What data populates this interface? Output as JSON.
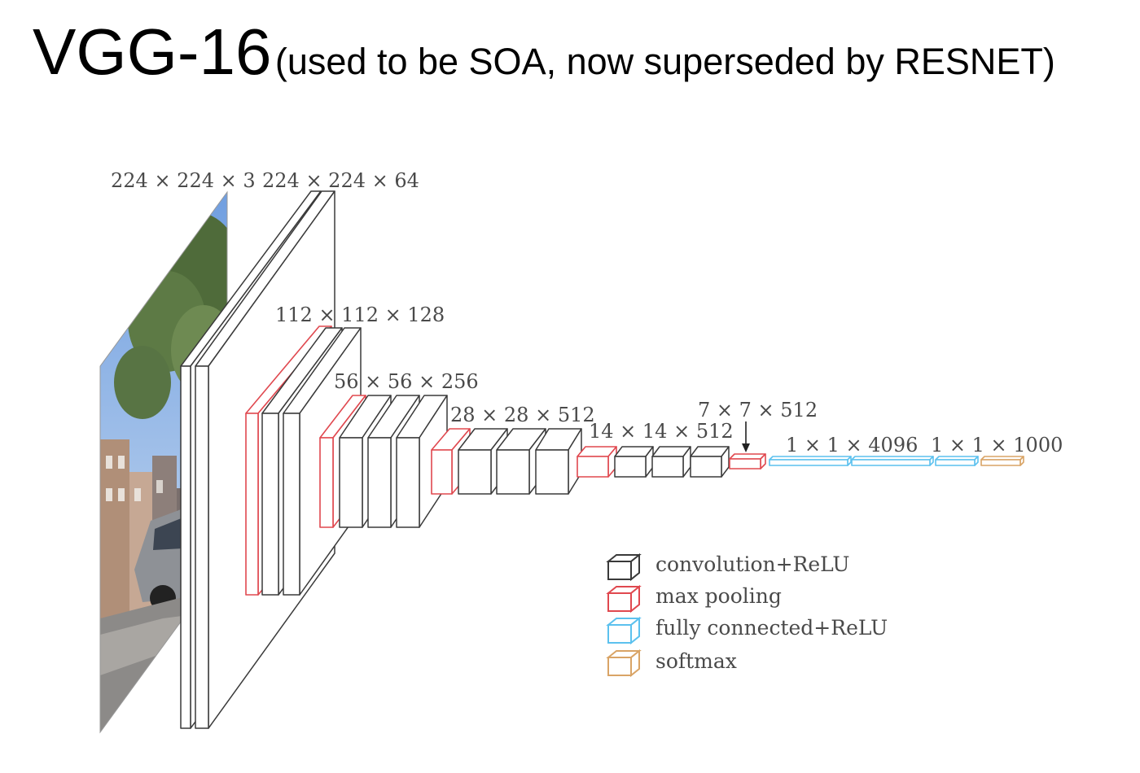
{
  "slide": {
    "title": "VGG-16",
    "subtitle": "(used to be SOA, now superseded by RESNET)"
  },
  "colors": {
    "conv": "#3a3a3a",
    "pool": "#e0484f",
    "fc": "#5cc1ee",
    "softmax": "#d9a466"
  },
  "dimensions": [
    "224 × 224 × 3",
    "224 × 224 × 64",
    "112 × 112 × 128",
    "56 × 56 × 256",
    "28 × 28 × 512",
    "14 × 14 × 512",
    "7 × 7 × 512",
    "1 × 1 × 4096",
    "1 × 1 × 1000"
  ],
  "legend": [
    {
      "label": "convolution+ReLU",
      "type": "conv"
    },
    {
      "label": "max  pooling",
      "type": "pool"
    },
    {
      "label": "fully  connected+ReLU",
      "type": "fc"
    },
    {
      "label": "softmax",
      "type": "softmax"
    }
  ]
}
